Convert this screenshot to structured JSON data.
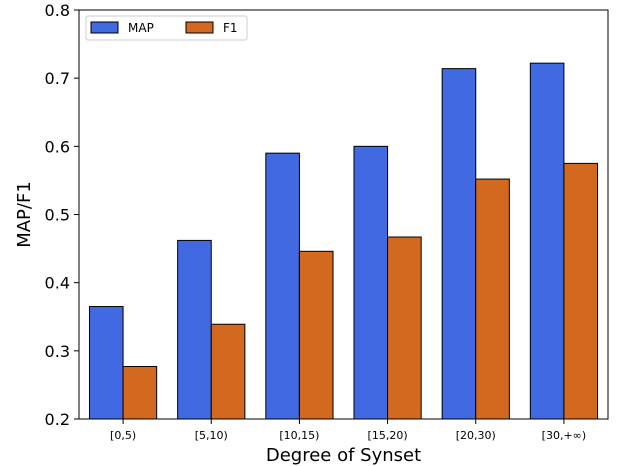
{
  "chart_data": {
    "type": "bar",
    "title": "",
    "xlabel": "Degree of Synset",
    "ylabel": "MAP/F1",
    "categories": [
      "[0,5)",
      "[5,10)",
      "[10,15)",
      "[15,20)",
      "[20,30)",
      "[30,+∞)"
    ],
    "series": [
      {
        "name": "MAP",
        "color": "#4169e1",
        "values": [
          0.365,
          0.462,
          0.59,
          0.6,
          0.714,
          0.722
        ]
      },
      {
        "name": "F1",
        "color": "#d2691e",
        "values": [
          0.277,
          0.339,
          0.446,
          0.467,
          0.552,
          0.575
        ]
      }
    ],
    "ylim": [
      0.2,
      0.8
    ],
    "yticks": [
      "0.2",
      "0.3",
      "0.4",
      "0.5",
      "0.6",
      "0.7",
      "0.8"
    ],
    "grid": false,
    "legend_position": "top-left",
    "legend_columns": 2
  }
}
